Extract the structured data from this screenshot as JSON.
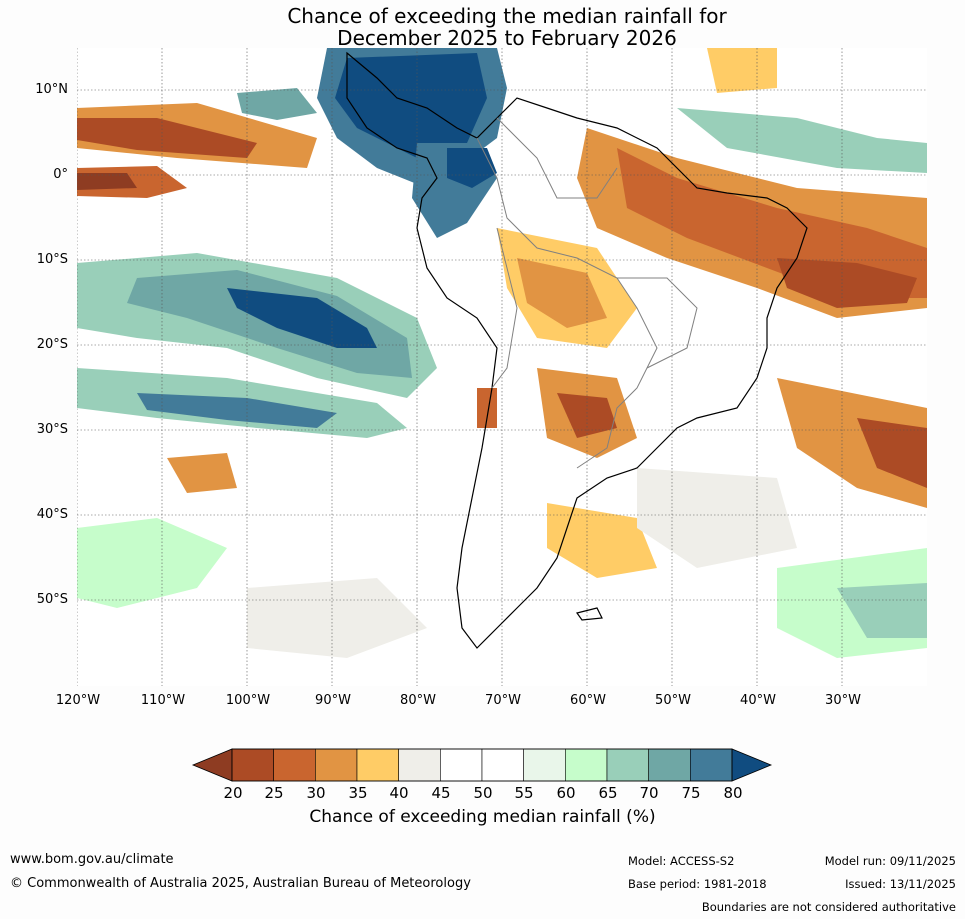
{
  "title": {
    "line1": "Chance of exceeding the median rainfall for",
    "line2": "December 2025 to February 2026"
  },
  "map": {
    "latitude_labels": [
      "10°N",
      "0°",
      "10°S",
      "20°S",
      "30°S",
      "40°S",
      "50°S"
    ],
    "longitude_labels": [
      "120°W",
      "110°W",
      "100°W",
      "90°W",
      "80°W",
      "70°W",
      "60°W",
      "50°W",
      "40°W",
      "30°W"
    ],
    "background_color": "#ffffff"
  },
  "colorbar": {
    "ticks": [
      "20",
      "25",
      "30",
      "35",
      "40",
      "45",
      "50",
      "55",
      "60",
      "65",
      "70",
      "75",
      "80"
    ],
    "colors": [
      "#ac4b25",
      "#c9652f",
      "#e19443",
      "#ffcc66",
      "#efeee9",
      "#ffffff",
      "#ffffff",
      "#e9f6ea",
      "#c6fdcb",
      "#99cfb9",
      "#6fa7a5",
      "#427b99"
    ],
    "below_color": "#8e3c22",
    "above_color": "#104c80",
    "label": "Chance of exceeding median rainfall (%)"
  },
  "footer": {
    "website": "www.bom.gov.au/climate",
    "copyright": "© Commonwealth of Australia 2025, Australian Bureau of Meteorology",
    "model": "Model: ACCESS-S2",
    "model_run": "Model run: 09/11/2025",
    "base_period": "Base period: 1981-2018",
    "issued": "Issued: 13/11/2025",
    "disclaimer": "Boundaries are not considered authoritative"
  }
}
